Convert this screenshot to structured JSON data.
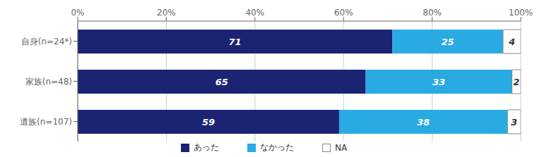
{
  "chart_data": {
    "type": "bar",
    "orientation": "horizontal",
    "stacked": true,
    "categories": [
      "自身(n=24*)",
      "家族(n=48)",
      "遺族(n=107)"
    ],
    "series": [
      {
        "name": "あった",
        "color": "#1a2472",
        "values": [
          71,
          65,
          59
        ]
      },
      {
        "name": "なかった",
        "color": "#29aae2",
        "values": [
          25,
          33,
          38
        ]
      },
      {
        "name": "NA",
        "color": "#ffffff",
        "values": [
          4,
          2,
          3
        ]
      }
    ],
    "xlim": [
      0,
      100
    ],
    "xticks": [
      {
        "value": 0,
        "label": "0%"
      },
      {
        "value": 20,
        "label": "20%"
      },
      {
        "value": 40,
        "label": "40%"
      },
      {
        "value": 60,
        "label": "60%"
      },
      {
        "value": 80,
        "label": "80%"
      },
      {
        "value": 100,
        "label": "100%"
      }
    ],
    "grid": true,
    "data_labels": true,
    "legend": "bottom"
  }
}
